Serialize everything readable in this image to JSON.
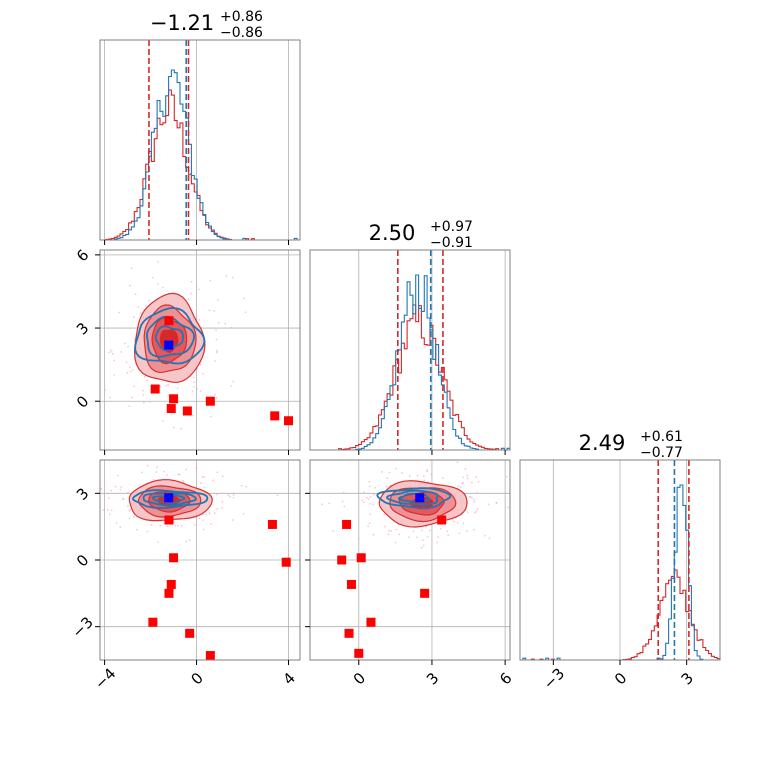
{
  "chart_data": {
    "type": "corner-plot",
    "grid": true,
    "colors": {
      "red_series": "#d62728",
      "blue_series": "#1f77b4",
      "red_marker": "#ff0000",
      "blue_marker": "#0000ff",
      "grid": "#b0b0b0",
      "spine": "#808080"
    },
    "params": [
      {
        "ticks": [
          -4,
          0,
          4
        ],
        "tick_labels": [
          "−4",
          "0",
          "4"
        ],
        "range": [
          -4.2,
          4.5
        ]
      },
      {
        "ticks": [
          0,
          3,
          6
        ],
        "tick_labels": [
          "0",
          "3",
          "6"
        ],
        "range": [
          -2.0,
          6.2
        ]
      },
      {
        "ticks": [
          -3,
          0,
          3
        ],
        "tick_labels": [
          "−3",
          "0",
          "3"
        ],
        "range": [
          -4.5,
          4.5
        ]
      }
    ],
    "titles": [
      {
        "value": "−1.21",
        "plus": "+0.86",
        "minus": "−0.86"
      },
      {
        "value": "2.50",
        "plus": "+0.97",
        "minus": "−0.91"
      },
      {
        "value": "2.49",
        "plus": "+0.61",
        "minus": "−0.77"
      }
    ],
    "diag": [
      {
        "red_lines": [
          -2.07,
          -0.35
        ],
        "blue_lines": [
          -0.45
        ],
        "red": {
          "mu": -1.2,
          "sd": 0.82
        },
        "blue": {
          "mu": -1.1,
          "sd": 0.75
        }
      },
      {
        "red_lines": [
          1.6,
          3.45
        ],
        "blue_lines": [
          2.95
        ],
        "red": {
          "mu": 2.45,
          "sd": 0.95
        },
        "blue": {
          "mu": 2.4,
          "sd": 0.75
        }
      },
      {
        "red_lines": [
          1.72,
          3.1
        ],
        "blue_lines": [
          2.45
        ],
        "red": {
          "mu": 2.45,
          "sd": 0.7
        },
        "blue": {
          "mu": 2.75,
          "sd": 0.28
        }
      }
    ],
    "pairs": [
      {
        "xi": 0,
        "yi": 1,
        "red_center": [
          -1.2,
          2.5
        ],
        "red_sd": [
          0.75,
          0.9
        ],
        "blue_center": [
          -1.2,
          2.6
        ],
        "blue_sd": [
          0.85,
          0.65
        ],
        "blue_marker": [
          -1.21,
          2.3
        ],
        "red_markers": [
          [
            -1.2,
            3.3
          ],
          [
            -1.8,
            0.5
          ],
          [
            -1.0,
            0.1
          ],
          [
            -1.1,
            -0.3
          ],
          [
            -0.4,
            -0.4
          ],
          [
            0.6,
            0.0
          ],
          [
            3.4,
            -0.6
          ],
          [
            4.0,
            -0.8
          ]
        ]
      },
      {
        "xi": 0,
        "yi": 2,
        "red_center": [
          -1.2,
          2.65
        ],
        "red_sd": [
          0.9,
          0.45
        ],
        "blue_center": [
          -1.2,
          2.75
        ],
        "blue_sd": [
          0.95,
          0.22
        ],
        "blue_marker": [
          -1.21,
          2.8
        ],
        "red_markers": [
          [
            -1.2,
            1.8
          ],
          [
            3.3,
            1.6
          ],
          [
            -1.0,
            0.1
          ],
          [
            3.9,
            -0.1
          ],
          [
            -1.1,
            -1.1
          ],
          [
            -1.2,
            -1.5
          ],
          [
            -1.9,
            -2.8
          ],
          [
            -0.3,
            -3.3
          ],
          [
            0.6,
            -4.3
          ]
        ]
      },
      {
        "xi": 1,
        "yi": 2,
        "red_center": [
          2.6,
          2.55
        ],
        "red_sd": [
          0.9,
          0.5
        ],
        "blue_center": [
          2.3,
          2.8
        ],
        "blue_sd": [
          0.85,
          0.25
        ],
        "blue_marker": [
          2.5,
          2.8
        ],
        "red_markers": [
          [
            3.4,
            1.8
          ],
          [
            -0.5,
            1.6
          ],
          [
            -0.7,
            0.0
          ],
          [
            0.1,
            0.1
          ],
          [
            -0.3,
            -1.1
          ],
          [
            2.7,
            -1.5
          ],
          [
            0.5,
            -2.8
          ],
          [
            -0.4,
            -3.3
          ],
          [
            0.0,
            -4.2
          ]
        ]
      }
    ]
  }
}
